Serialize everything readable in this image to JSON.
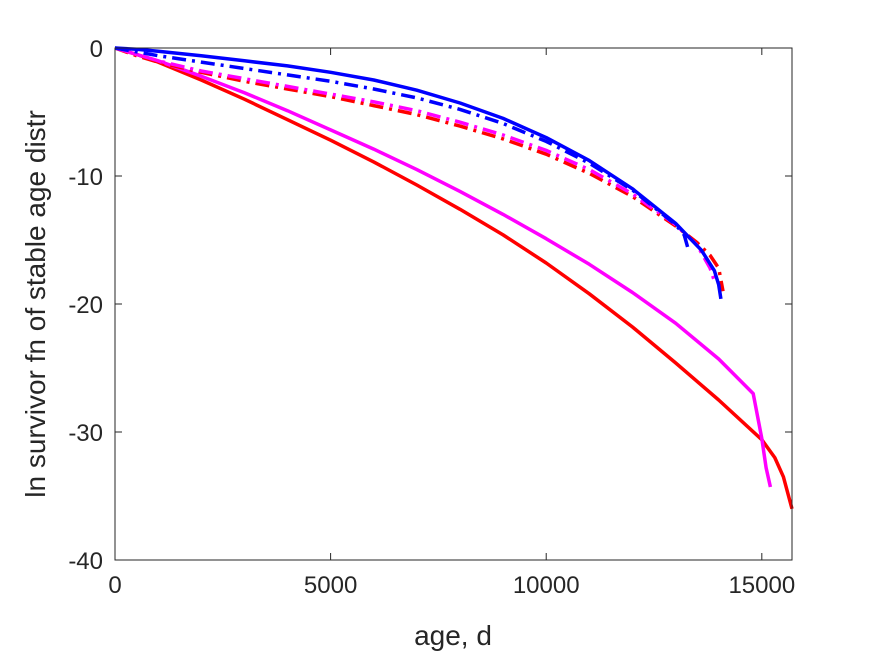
{
  "chart_data": {
    "type": "line",
    "title": "",
    "xlabel": "age, d",
    "ylabel": "ln survivor fn of stable age distr",
    "xlim": [
      0,
      15700
    ],
    "ylim": [
      -40,
      0
    ],
    "xticks": [
      0,
      5000,
      10000,
      15000
    ],
    "yticks": [
      0,
      -10,
      -20,
      -30,
      -40
    ],
    "grid": false,
    "legend": "none",
    "series": [
      {
        "color": "#ff0000",
        "style": "solid",
        "x": [
          0,
          500,
          1000,
          2000,
          3000,
          4000,
          5000,
          6000,
          7000,
          8000,
          9000,
          10000,
          11000,
          12000,
          13000,
          14000,
          15000,
          15300,
          15500,
          15700
        ],
        "y": [
          0,
          -0.5,
          -1.1,
          -2.5,
          -4.0,
          -5.6,
          -7.2,
          -8.9,
          -10.7,
          -12.6,
          -14.6,
          -16.8,
          -19.2,
          -21.8,
          -24.6,
          -27.5,
          -30.6,
          -32.0,
          -33.5,
          -36.0
        ]
      },
      {
        "color": "#ff00ff",
        "style": "solid",
        "x": [
          0,
          500,
          1000,
          2000,
          3000,
          4000,
          5000,
          6000,
          7000,
          8000,
          9000,
          10000,
          11000,
          12000,
          13000,
          14000,
          14800,
          15000,
          15100,
          15200
        ],
        "y": [
          0,
          -0.5,
          -1.0,
          -2.2,
          -3.5,
          -4.9,
          -6.4,
          -7.9,
          -9.5,
          -11.2,
          -13.0,
          -14.9,
          -16.9,
          -19.1,
          -21.5,
          -24.3,
          -27.0,
          -30.5,
          -32.8,
          -34.3
        ]
      },
      {
        "color": "#ff0000",
        "style": "dashdot",
        "x": [
          0,
          500,
          1000,
          2000,
          3000,
          4000,
          5000,
          6000,
          7000,
          8000,
          9000,
          10000,
          11000,
          12000,
          13000,
          13500,
          13800,
          14000,
          14100
        ],
        "y": [
          0,
          -0.6,
          -1.1,
          -1.9,
          -2.6,
          -3.2,
          -3.8,
          -4.5,
          -5.2,
          -6.1,
          -7.1,
          -8.3,
          -9.8,
          -11.6,
          -13.9,
          -15.2,
          -16.2,
          -17.2,
          -19.0
        ]
      },
      {
        "color": "#ff00ff",
        "style": "dashdot",
        "x": [
          0,
          500,
          1000,
          2000,
          3000,
          4000,
          5000,
          6000,
          7000,
          8000,
          9000,
          10000,
          11000,
          12000,
          13000,
          13500,
          13800,
          13900
        ],
        "y": [
          0,
          -0.5,
          -1.0,
          -1.8,
          -2.4,
          -3.0,
          -3.6,
          -4.2,
          -4.9,
          -5.8,
          -6.8,
          -8.0,
          -9.5,
          -11.4,
          -13.8,
          -15.4,
          -17.2,
          -18.2
        ]
      },
      {
        "color": "#0000ff",
        "style": "solid",
        "x": [
          0,
          500,
          1000,
          2000,
          3000,
          4000,
          5000,
          6000,
          7000,
          8000,
          9000,
          10000,
          11000,
          12000,
          13000,
          13600,
          13900,
          14000,
          14050
        ],
        "y": [
          0,
          -0.1,
          -0.25,
          -0.6,
          -1.0,
          -1.4,
          -1.9,
          -2.5,
          -3.3,
          -4.3,
          -5.5,
          -7.0,
          -8.8,
          -11.0,
          -13.7,
          -15.8,
          -17.4,
          -18.5,
          -19.6
        ]
      },
      {
        "color": "#0000ff",
        "style": "dashdot",
        "x": [
          0,
          500,
          1000,
          2000,
          3000,
          4000,
          5000,
          6000,
          7000,
          8000,
          9000,
          10000,
          11000,
          12000,
          13000,
          13200,
          13300
        ],
        "y": [
          0,
          -0.3,
          -0.6,
          -1.1,
          -1.6,
          -2.1,
          -2.6,
          -3.2,
          -3.9,
          -4.8,
          -5.9,
          -7.3,
          -9.0,
          -11.1,
          -13.8,
          -14.6,
          -15.8
        ]
      }
    ]
  }
}
